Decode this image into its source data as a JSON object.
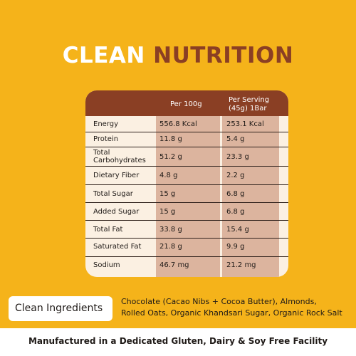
{
  "title": {
    "word1": "CLEAN",
    "word2": "NUTRITION"
  },
  "table": {
    "col1_header": "Per 100g",
    "col2_header_line1": "Per Serving",
    "col2_header_line2": "(45g) 1Bar",
    "rows": [
      {
        "label": "Energy",
        "per100": "556.8 Kcal",
        "serving": "253.1 Kcal"
      },
      {
        "label": "Protein",
        "per100": "11.8 g",
        "serving": "5.4 g"
      },
      {
        "label_line1": "Total",
        "label_line2": "Carbohydrates",
        "per100": "51.2 g",
        "serving": "23.3 g"
      },
      {
        "label": "Dietary Fiber",
        "per100": "4.8 g",
        "serving": "2.2 g"
      },
      {
        "label": "Total Sugar",
        "per100": "15 g",
        "serving": "6.8 g"
      },
      {
        "label": "Added Sugar",
        "per100": "15 g",
        "serving": "6.8 g"
      },
      {
        "label": "Total Fat",
        "per100": "33.8 g",
        "serving": "15.4 g"
      },
      {
        "label": "Saturated Fat",
        "per100": "21.8 g",
        "serving": "9.9 g"
      },
      {
        "label": "Sodium",
        "per100": "46.7 mg",
        "serving": "21.2 mg"
      }
    ]
  },
  "ingredients": {
    "tag": "Clean Ingredients",
    "line1": "Chocolate (Cacao Nibs + Cocoa Butter), Almonds,",
    "line2": "Rolled Oats, Organic Khandsari Sugar, Organic Rock Salt"
  },
  "footer": "Manufactured in a Dedicated Gluten, Dairy & Soy Free Facility",
  "colors": {
    "background": "#f5b31a",
    "brown": "#8a3f24",
    "panel": "#fbf0e2",
    "cell": "#dcb49e"
  }
}
